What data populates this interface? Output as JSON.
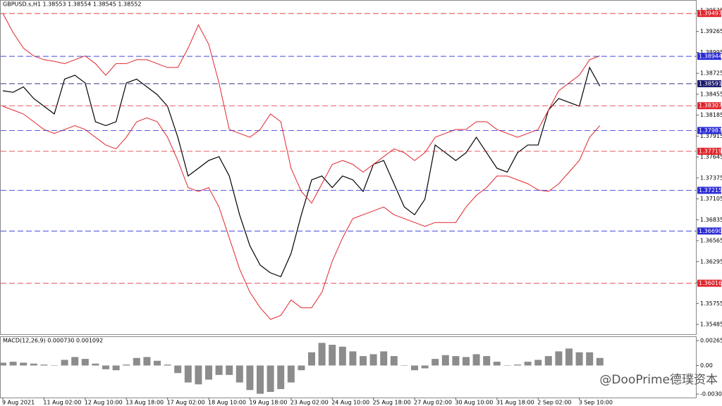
{
  "chart_data": [
    {
      "type": "line",
      "title": "GBPUSD.s,H1  1.38553 1.38554 1.38545 1.38552",
      "categories": [
        "9 Aug 2021",
        null,
        null,
        null,
        "11 Aug 02:00",
        null,
        null,
        null,
        "12 Aug 10:00",
        null,
        null,
        null,
        "13 Aug 18:00",
        null,
        null,
        null,
        "17 Aug 02:00",
        null,
        null,
        null,
        "18 Aug 10:00",
        null,
        null,
        null,
        "19 Aug 18:00",
        null,
        null,
        null,
        "23 Aug 02:00",
        null,
        null,
        null,
        "24 Aug 10:00",
        null,
        null,
        null,
        "25 Aug 18:00",
        null,
        null,
        null,
        "27 Aug 02:00",
        null,
        null,
        null,
        "30 Aug 10:00",
        null,
        null,
        null,
        "31 Aug 18:00",
        null,
        null,
        null,
        "2 Sep 02:00",
        null,
        null,
        null,
        "3 Sep 10:00",
        null,
        null
      ],
      "series": [
        {
          "color": "#000000",
          "values": [
            1.385,
            1.3848,
            1.3855,
            1.384,
            1.383,
            1.382,
            1.3865,
            1.387,
            1.386,
            1.381,
            1.3805,
            1.381,
            1.386,
            1.3865,
            1.3855,
            1.3845,
            1.383,
            1.379,
            1.374,
            1.375,
            1.376,
            1.3765,
            1.374,
            1.369,
            1.365,
            1.3625,
            1.3615,
            1.361,
            1.364,
            1.369,
            1.3735,
            1.374,
            1.3725,
            1.374,
            1.3735,
            1.372,
            1.3755,
            1.376,
            1.373,
            1.37,
            1.369,
            1.371,
            1.378,
            1.377,
            1.376,
            1.377,
            1.379,
            1.377,
            1.375,
            1.3745,
            1.377,
            1.378,
            1.378,
            1.3825,
            1.384,
            1.3835,
            1.383,
            1.388,
            1.3856
          ]
        },
        {
          "color": "#e0262c",
          "values": [
            1.395,
            1.3925,
            1.3905,
            1.3895,
            1.389,
            1.3888,
            1.3885,
            1.389,
            1.3895,
            1.3885,
            1.387,
            1.3885,
            1.3885,
            1.389,
            1.389,
            1.3885,
            1.388,
            1.388,
            1.3905,
            1.3935,
            1.391,
            1.386,
            1.38,
            1.3795,
            1.379,
            1.38,
            1.382,
            1.381,
            1.375,
            1.372,
            1.3705,
            1.373,
            1.3755,
            1.376,
            1.3755,
            1.3745,
            1.3755,
            1.3765,
            1.3775,
            1.377,
            1.376,
            1.377,
            1.379,
            1.3795,
            1.38,
            1.38,
            1.381,
            1.381,
            1.38,
            1.3795,
            1.379,
            1.3795,
            1.38,
            1.3825,
            1.385,
            1.386,
            1.387,
            1.389,
            1.3895
          ]
        },
        {
          "color": "#e0262c",
          "values": [
            1.383,
            1.3825,
            1.382,
            1.381,
            1.38,
            1.3795,
            1.38,
            1.3805,
            1.38,
            1.379,
            1.378,
            1.3775,
            1.379,
            1.381,
            1.3815,
            1.381,
            1.379,
            1.376,
            1.3725,
            1.372,
            1.3725,
            1.37,
            1.366,
            1.362,
            1.359,
            1.357,
            1.3555,
            1.356,
            1.358,
            1.357,
            1.357,
            1.359,
            1.363,
            1.366,
            1.3685,
            1.369,
            1.3695,
            1.37,
            1.369,
            1.3685,
            1.368,
            1.3675,
            1.368,
            1.368,
            1.368,
            1.37,
            1.3715,
            1.3725,
            1.374,
            1.374,
            1.3735,
            1.373,
            1.3722,
            1.372,
            1.373,
            1.3745,
            1.376,
            1.379,
            1.3805
          ]
        }
      ],
      "ylim": [
        1.35358,
        1.39662
      ],
      "yticks": [
        1.39535,
        1.39265,
        1.38995,
        1.38725,
        1.38455,
        1.38185,
        1.37915,
        1.37645,
        1.37375,
        1.37105,
        1.36835,
        1.36565,
        1.36295,
        1.36025,
        1.35755,
        1.35485
      ],
      "levels": [
        {
          "price": 1.39497,
          "color": "#e0262c"
        },
        {
          "price": 1.38944,
          "color": "#2b2bd6"
        },
        {
          "price": 1.38591,
          "color": "#1a1a6e"
        },
        {
          "price": 1.38307,
          "color": "#e0262c"
        },
        {
          "price": 1.37987,
          "color": "#2b2bd6"
        },
        {
          "price": 1.37719,
          "color": "#e0262c"
        },
        {
          "price": 1.37215,
          "color": "#2b2bd6"
        },
        {
          "price": {
            "value": 1.3669,
            "label": "1.36690"
          },
          "color": "#2b2bd6"
        },
        {
          "price": 1.36016,
          "color": "#e0262c"
        }
      ],
      "grid": false
    },
    {
      "type": "bar",
      "title": "MACD(12,26,9) 0.000730 0.001092",
      "color": "#8c8c8c",
      "values": [
        0.0003,
        0.0004,
        0.0003,
        0.0002,
        0.0001,
        0,
        0.0006,
        0.0009,
        0.0007,
        0.0002,
        -0.0004,
        -0.0005,
        0.0001,
        0.0008,
        0.0009,
        0.0005,
        0.0001,
        -0.0008,
        -0.0018,
        -0.002,
        -0.0015,
        -0.001,
        -0.001,
        -0.0018,
        -0.0026,
        -0.003,
        -0.0028,
        -0.0025,
        -0.0018,
        -0.0005,
        0.0014,
        0.0024,
        0.0022,
        0.002,
        0.0015,
        0.001,
        0.0012,
        0.0015,
        0.001,
        0,
        -0.0005,
        -0.0003,
        0.0007,
        0.0011,
        0.001,
        0.0009,
        0.0012,
        0.001,
        0.0004,
        0,
        0.0001,
        0.0004,
        0.0006,
        0.001,
        0.0015,
        0.0018,
        0.0014,
        0.0014,
        0.0008
      ],
      "ylim": [
        -0.0034,
        0.00302
      ],
      "yticks": [
        0.002651,
        {
          "value": 0,
          "label": "0.00"
        },
        -0.00303
      ]
    }
  ],
  "watermark": "@DooPrime德璞资本"
}
